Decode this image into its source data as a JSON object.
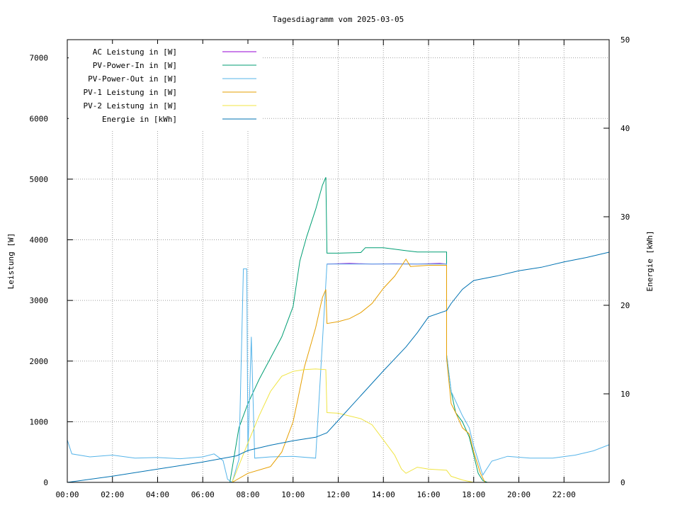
{
  "chart_data": {
    "type": "line",
    "title": "Tagesdiagramm vom 2025-03-05",
    "xlabel": "",
    "ylabel": "Leistung [W]",
    "y2label": "Energie [kWh]",
    "x_unit": "hours",
    "xlim": [
      0,
      24
    ],
    "ylim": [
      0,
      7300
    ],
    "y2lim": [
      0,
      50
    ],
    "x_tick_labels": [
      "00:00",
      "02:00",
      "04:00",
      "06:00",
      "08:00",
      "10:00",
      "12:00",
      "14:00",
      "16:00",
      "18:00",
      "20:00",
      "22:00"
    ],
    "y_ticks": [
      0,
      1000,
      2000,
      3000,
      4000,
      5000,
      6000,
      7000
    ],
    "y2_ticks": [
      0,
      10,
      20,
      30,
      40,
      50
    ],
    "grid": true,
    "legend_position": "top-left",
    "series": [
      {
        "name": "AC Leistung in [W]",
        "color": "#9400d3",
        "axis": "y",
        "points": [
          [
            11.5,
            3600
          ],
          [
            12.5,
            3610
          ],
          [
            13.5,
            3600
          ],
          [
            14.5,
            3605
          ],
          [
            15.5,
            3600
          ],
          [
            16.5,
            3610
          ],
          [
            16.8,
            3600
          ]
        ]
      },
      {
        "name": "PV-Power-In in [W]",
        "color": "#009e73",
        "axis": "y",
        "points": [
          [
            7.2,
            0
          ],
          [
            7.6,
            900
          ],
          [
            8.0,
            1300
          ],
          [
            8.5,
            1700
          ],
          [
            9.0,
            2050
          ],
          [
            9.5,
            2400
          ],
          [
            10.0,
            2900
          ],
          [
            10.3,
            3650
          ],
          [
            10.6,
            4050
          ],
          [
            11.0,
            4500
          ],
          [
            11.3,
            4900
          ],
          [
            11.45,
            5030
          ],
          [
            11.5,
            3780
          ],
          [
            12.0,
            3780
          ],
          [
            13.0,
            3790
          ],
          [
            13.2,
            3870
          ],
          [
            14.0,
            3870
          ],
          [
            15.0,
            3820
          ],
          [
            15.5,
            3800
          ],
          [
            16.0,
            3800
          ],
          [
            16.8,
            3800
          ],
          [
            16.8,
            2100
          ],
          [
            17.0,
            1500
          ],
          [
            17.2,
            1150
          ],
          [
            17.5,
            1000
          ],
          [
            17.8,
            750
          ],
          [
            18.0,
            450
          ],
          [
            18.2,
            150
          ],
          [
            18.4,
            30
          ],
          [
            18.6,
            0
          ]
        ]
      },
      {
        "name": "PV-Power-Out in [W]",
        "color": "#56b4e9",
        "axis": "y",
        "points": [
          [
            0,
            700
          ],
          [
            0.2,
            470
          ],
          [
            1,
            420
          ],
          [
            2,
            450
          ],
          [
            3,
            400
          ],
          [
            4,
            410
          ],
          [
            5,
            390
          ],
          [
            6,
            420
          ],
          [
            6.5,
            470
          ],
          [
            6.9,
            360
          ],
          [
            7.1,
            50
          ],
          [
            7.3,
            0
          ],
          [
            7.6,
            380
          ],
          [
            7.8,
            3520
          ],
          [
            7.95,
            3520
          ],
          [
            8.0,
            500
          ],
          [
            8.15,
            2400
          ],
          [
            8.3,
            400
          ],
          [
            9,
            420
          ],
          [
            10,
            430
          ],
          [
            11,
            400
          ],
          [
            11.5,
            3600
          ],
          [
            12,
            3600
          ],
          [
            14,
            3600
          ],
          [
            15,
            3600
          ],
          [
            16,
            3600
          ],
          [
            16.8,
            3600
          ],
          [
            16.8,
            2100
          ],
          [
            17,
            1500
          ],
          [
            17.5,
            1100
          ],
          [
            17.8,
            900
          ],
          [
            18,
            600
          ],
          [
            18.4,
            120
          ],
          [
            18.8,
            350
          ],
          [
            19.5,
            430
          ],
          [
            20.5,
            400
          ],
          [
            21.5,
            400
          ],
          [
            22.5,
            450
          ],
          [
            23.3,
            520
          ],
          [
            24,
            620
          ]
        ]
      },
      {
        "name": "PV-1 Leistung in [W]",
        "color": "#e69f00",
        "axis": "y",
        "points": [
          [
            7.3,
            0
          ],
          [
            8.0,
            150
          ],
          [
            9.0,
            260
          ],
          [
            9.5,
            500
          ],
          [
            10.0,
            1000
          ],
          [
            10.2,
            1350
          ],
          [
            10.5,
            1900
          ],
          [
            11.0,
            2550
          ],
          [
            11.3,
            3050
          ],
          [
            11.45,
            3180
          ],
          [
            11.5,
            2620
          ],
          [
            12.0,
            2650
          ],
          [
            12.5,
            2700
          ],
          [
            13.0,
            2800
          ],
          [
            13.5,
            2950
          ],
          [
            14.0,
            3200
          ],
          [
            14.5,
            3400
          ],
          [
            15.0,
            3680
          ],
          [
            15.2,
            3560
          ],
          [
            16.0,
            3580
          ],
          [
            16.8,
            3580
          ],
          [
            16.8,
            2050
          ],
          [
            17.0,
            1300
          ],
          [
            17.2,
            1150
          ],
          [
            17.5,
            900
          ],
          [
            17.8,
            800
          ],
          [
            18.0,
            500
          ],
          [
            18.3,
            150
          ],
          [
            18.5,
            0
          ]
        ]
      },
      {
        "name": "PV-2 Leistung in [W]",
        "color": "#f0e442",
        "axis": "y",
        "points": [
          [
            7.3,
            0
          ],
          [
            8.0,
            650
          ],
          [
            8.5,
            1100
          ],
          [
            9.0,
            1500
          ],
          [
            9.5,
            1750
          ],
          [
            10.0,
            1830
          ],
          [
            10.5,
            1860
          ],
          [
            11.0,
            1870
          ],
          [
            11.45,
            1860
          ],
          [
            11.5,
            1150
          ],
          [
            12.0,
            1140
          ],
          [
            13.0,
            1050
          ],
          [
            13.5,
            950
          ],
          [
            14.0,
            700
          ],
          [
            14.5,
            450
          ],
          [
            14.8,
            220
          ],
          [
            15.0,
            150
          ],
          [
            15.5,
            250
          ],
          [
            16.0,
            220
          ],
          [
            16.8,
            200
          ],
          [
            17.0,
            100
          ],
          [
            17.5,
            40
          ],
          [
            18.0,
            0
          ]
        ]
      },
      {
        "name": "Energie in [kWh]",
        "color": "#0072b2",
        "axis": "y2",
        "points": [
          [
            0,
            0
          ],
          [
            2,
            0.7
          ],
          [
            4,
            1.5
          ],
          [
            6,
            2.3
          ],
          [
            7.5,
            3
          ],
          [
            8,
            3.6
          ],
          [
            9,
            4.2
          ],
          [
            10,
            4.7
          ],
          [
            11,
            5.1
          ],
          [
            11.5,
            5.6
          ],
          [
            12,
            7
          ],
          [
            13,
            9.8
          ],
          [
            14,
            12.6
          ],
          [
            15,
            15.3
          ],
          [
            15.5,
            16.9
          ],
          [
            16,
            18.7
          ],
          [
            16.8,
            19.4
          ],
          [
            17,
            20.2
          ],
          [
            17.5,
            21.8
          ],
          [
            18,
            22.8
          ],
          [
            19,
            23.3
          ],
          [
            20,
            23.9
          ],
          [
            21,
            24.3
          ],
          [
            22,
            24.9
          ],
          [
            23,
            25.4
          ],
          [
            24,
            26
          ]
        ]
      }
    ]
  }
}
